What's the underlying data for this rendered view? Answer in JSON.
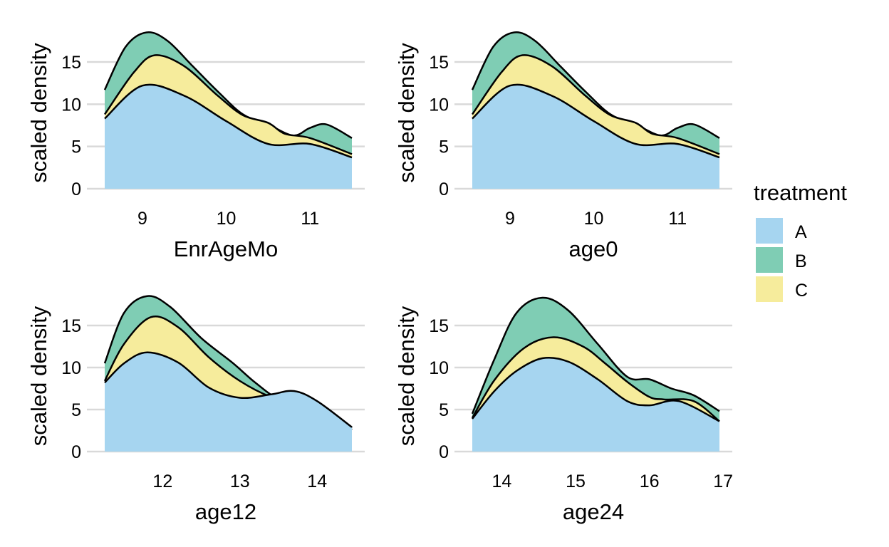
{
  "chart_data": {
    "type": "area",
    "panels": [
      {
        "xlabel": "EnrAgeMo",
        "ylabel": "scaled density",
        "x_ticks": [
          9,
          10,
          11
        ],
        "xlim": [
          8.55,
          11.5
        ],
        "y_ticks": [
          0,
          5,
          10,
          15
        ],
        "ylim": [
          0,
          18.5
        ],
        "series": [
          {
            "name": "A",
            "x": [
              8.55,
              9.0,
              9.5,
              10.0,
              10.5,
              11.0,
              11.5
            ],
            "y": [
              8.3,
              12.2,
              11.0,
              8.0,
              5.3,
              5.3,
              3.7
            ]
          },
          {
            "name": "B",
            "x": [
              8.55,
              8.8,
              9.05,
              9.3,
              9.6,
              9.9,
              10.2,
              10.5,
              10.8,
              11.0,
              11.2,
              11.5
            ],
            "y": [
              11.7,
              16.8,
              18.5,
              17.5,
              14.5,
              11.5,
              8.8,
              7.6,
              6.3,
              7.2,
              7.6,
              6.0
            ]
          },
          {
            "name": "C",
            "x": [
              8.55,
              8.9,
              9.15,
              9.5,
              9.9,
              10.2,
              10.5,
              10.7,
              11.0,
              11.5
            ],
            "y": [
              8.8,
              13.8,
              15.8,
              14.5,
              11.0,
              8.7,
              7.8,
              6.5,
              6.0,
              4.1
            ]
          }
        ]
      },
      {
        "xlabel": "age0",
        "ylabel": "scaled density",
        "x_ticks": [
          9,
          10,
          11
        ],
        "xlim": [
          8.55,
          11.5
        ],
        "y_ticks": [
          0,
          5,
          10,
          15
        ],
        "ylim": [
          0,
          18.5
        ],
        "series": [
          {
            "name": "A",
            "x": [
              8.55,
              9.0,
              9.5,
              10.0,
              10.5,
              11.0,
              11.5
            ],
            "y": [
              8.3,
              12.2,
              11.0,
              8.0,
              5.3,
              5.3,
              3.7
            ]
          },
          {
            "name": "B",
            "x": [
              8.55,
              8.8,
              9.05,
              9.3,
              9.6,
              9.9,
              10.2,
              10.5,
              10.8,
              11.0,
              11.2,
              11.5
            ],
            "y": [
              11.7,
              16.8,
              18.5,
              17.5,
              14.5,
              11.5,
              8.8,
              7.6,
              6.3,
              7.2,
              7.6,
              6.0
            ]
          },
          {
            "name": "C",
            "x": [
              8.55,
              8.9,
              9.15,
              9.5,
              9.9,
              10.2,
              10.5,
              10.7,
              11.0,
              11.5
            ],
            "y": [
              8.8,
              13.8,
              15.8,
              14.5,
              11.0,
              8.7,
              7.8,
              6.5,
              6.0,
              4.1
            ]
          }
        ]
      },
      {
        "xlabel": "age12",
        "ylabel": "scaled density",
        "x_ticks": [
          12,
          13,
          14
        ],
        "xlim": [
          11.25,
          14.45
        ],
        "y_ticks": [
          0,
          5,
          10,
          15
        ],
        "ylim": [
          0,
          18.5
        ],
        "series": [
          {
            "name": "A",
            "x": [
              11.25,
              11.5,
              11.8,
              12.2,
              12.6,
              13.0,
              13.4,
              13.7,
              14.0,
              14.45
            ],
            "y": [
              8.2,
              10.5,
              11.8,
              10.6,
              7.6,
              6.4,
              6.8,
              7.2,
              6.0,
              2.9
            ]
          },
          {
            "name": "B",
            "x": [
              11.25,
              11.5,
              11.8,
              12.1,
              12.5,
              12.9,
              13.2,
              13.5,
              13.8,
              14.1,
              14.45
            ],
            "y": [
              10.5,
              16.5,
              18.5,
              17.2,
              13.5,
              10.6,
              8.2,
              6.3,
              6.2,
              5.3,
              2.6
            ]
          },
          {
            "name": "C",
            "x": [
              11.25,
              11.5,
              11.85,
              12.2,
              12.6,
              13.0,
              13.4,
              13.8,
              14.1,
              14.45
            ],
            "y": [
              8.4,
              12.8,
              16.0,
              14.8,
              11.2,
              8.4,
              6.5,
              5.5,
              4.8,
              2.8
            ]
          }
        ]
      },
      {
        "xlabel": "age24",
        "ylabel": "scaled density",
        "x_ticks": [
          14,
          15,
          16,
          17
        ],
        "xlim": [
          13.6,
          16.95
        ],
        "y_ticks": [
          0,
          5,
          10,
          15
        ],
        "ylim": [
          0,
          18.5
        ],
        "series": [
          {
            "name": "A",
            "x": [
              13.6,
              13.9,
              14.2,
              14.55,
              14.9,
              15.3,
              15.7,
              16.0,
              16.4,
              16.95
            ],
            "y": [
              3.9,
              7.2,
              9.6,
              11.1,
              10.7,
              8.6,
              6.0,
              5.5,
              6.0,
              3.6
            ]
          },
          {
            "name": "B",
            "x": [
              13.6,
              13.9,
              14.2,
              14.55,
              14.9,
              15.3,
              15.7,
              16.0,
              16.3,
              16.6,
              16.95
            ],
            "y": [
              4.5,
              11.0,
              16.5,
              18.3,
              16.8,
              12.8,
              8.9,
              8.6,
              7.5,
              6.7,
              4.8
            ]
          },
          {
            "name": "C",
            "x": [
              13.6,
              13.9,
              14.3,
              14.7,
              15.1,
              15.4,
              15.7,
              16.0,
              16.2,
              16.6,
              16.95
            ],
            "y": [
              4.0,
              8.5,
              12.3,
              13.6,
              12.5,
              10.5,
              8.3,
              6.5,
              6.2,
              6.0,
              3.6
            ]
          }
        ]
      }
    ],
    "legend": {
      "title": "treatment",
      "position": "right",
      "entries": [
        {
          "label": "A",
          "color": "#a6d5f0"
        },
        {
          "label": "B",
          "color": "#7fcdb4"
        },
        {
          "label": "C",
          "color": "#f6ec9c"
        }
      ]
    },
    "grid": "horizontal"
  }
}
